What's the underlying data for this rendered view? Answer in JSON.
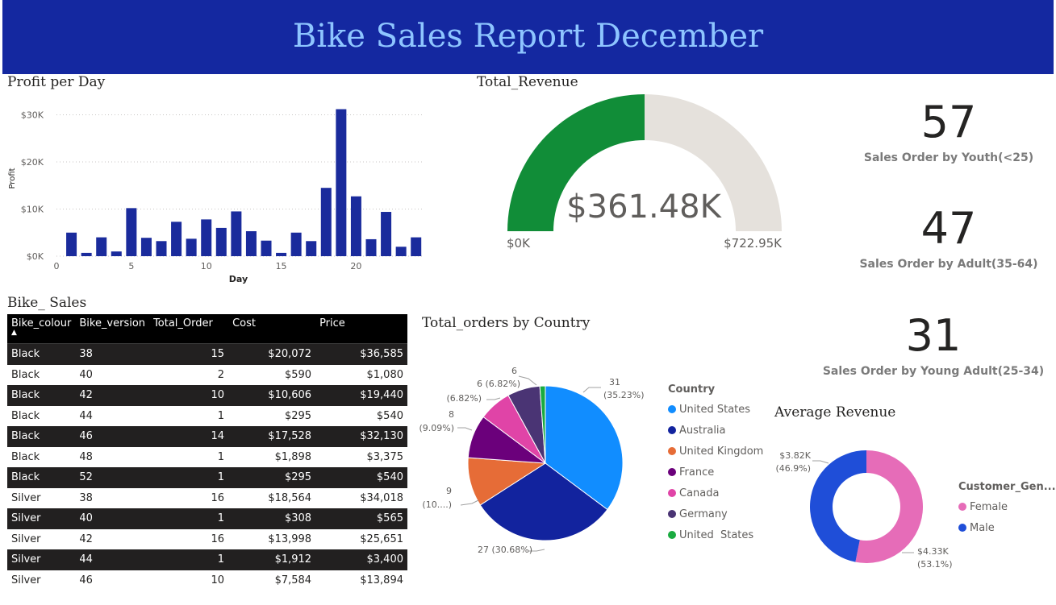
{
  "header": {
    "title": "Bike Sales Report December"
  },
  "profit_per_day": {
    "title": "Profit per Day",
    "chart_data": {
      "type": "bar",
      "xlabel": "Day",
      "ylabel": "Profit",
      "ylim": [
        0,
        33000
      ],
      "xlim": [
        0,
        24.5
      ],
      "y_ticks": [
        0,
        10000,
        20000,
        30000
      ],
      "y_tick_labels": [
        "$0K",
        "$10K",
        "$20K",
        "$30K"
      ],
      "x_ticks": [
        0,
        5,
        10,
        15,
        20
      ],
      "x_tick_labels": [
        "0",
        "5",
        "10",
        "15",
        "20"
      ],
      "days": [
        1,
        2,
        3,
        4,
        5,
        6,
        7,
        8,
        9,
        10,
        11,
        12,
        13,
        14,
        15,
        16,
        17,
        18,
        19,
        20,
        21,
        22,
        23,
        24
      ],
      "values": [
        5000,
        700,
        4000,
        1000,
        10200,
        3900,
        3200,
        7300,
        3700,
        7800,
        6000,
        9500,
        5300,
        3300,
        700,
        5000,
        3200,
        14500,
        31200,
        12700,
        3600,
        9400,
        2000,
        4000
      ],
      "grid": true,
      "color": "#1a2b9c"
    }
  },
  "total_revenue": {
    "title": "Total_Revenue",
    "value_label": "$361.48K",
    "min_label": "$0K",
    "max_label": "$722.95K",
    "chart_data": {
      "type": "gauge",
      "value": 361480,
      "min": 0,
      "max": 722950,
      "fill_color": "#118d38",
      "track_color": "#e5e1dc"
    }
  },
  "kpis": [
    {
      "value": "57",
      "label": "Sales Order by Youth(<25)"
    },
    {
      "value": "47",
      "label": "Sales Order by Adult(35-64)"
    },
    {
      "value": "31",
      "label": "Sales Order by Young Adult(25-34)"
    }
  ],
  "bike_sales": {
    "title": "Bike_ Sales",
    "columns": [
      "Bike_colour",
      "Bike_version",
      "Total_Order",
      "Cost",
      "Price"
    ],
    "sort_indicator": "▲",
    "rows": [
      [
        "Black",
        "38",
        "15",
        "$20,072",
        "$36,585"
      ],
      [
        "Black",
        "40",
        "2",
        "$590",
        "$1,080"
      ],
      [
        "Black",
        "42",
        "10",
        "$10,606",
        "$19,440"
      ],
      [
        "Black",
        "44",
        "1",
        "$295",
        "$540"
      ],
      [
        "Black",
        "46",
        "14",
        "$17,528",
        "$32,130"
      ],
      [
        "Black",
        "48",
        "1",
        "$1,898",
        "$3,375"
      ],
      [
        "Black",
        "52",
        "1",
        "$295",
        "$540"
      ],
      [
        "Silver",
        "38",
        "16",
        "$18,564",
        "$34,018"
      ],
      [
        "Silver",
        "40",
        "1",
        "$308",
        "$565"
      ],
      [
        "Silver",
        "42",
        "16",
        "$13,998",
        "$25,651"
      ],
      [
        "Silver",
        "44",
        "1",
        "$1,912",
        "$3,400"
      ],
      [
        "Silver",
        "46",
        "10",
        "$7,584",
        "$13,894"
      ]
    ]
  },
  "orders_by_country": {
    "title": "Total_orders by Country",
    "legend_title": "Country",
    "chart_data": {
      "type": "pie",
      "series": [
        {
          "name": "United States",
          "value": 31,
          "color": "#118dff"
        },
        {
          "name": "Australia",
          "value": 27,
          "color": "#12239e"
        },
        {
          "name": "United Kingdom",
          "value": 9,
          "color": "#e66c37"
        },
        {
          "name": "France",
          "value": 8,
          "color": "#6b007b"
        },
        {
          "name": "Canada",
          "value": 6,
          "color": "#e044a7"
        },
        {
          "name": "Germany",
          "value": 6,
          "color": "#4a3474"
        },
        {
          "name": "United  States",
          "value": 1,
          "color": "#1aab40"
        }
      ],
      "data_labels": [
        {
          "line1": "31",
          "line2": "(35.23%)"
        },
        {
          "line1": "27 (30.68%)",
          "line2": ""
        },
        {
          "line1": "9",
          "line2": "(10....)"
        },
        {
          "line1": "8",
          "line2": "(9.09%)"
        },
        {
          "line1": "6 (6.82%)",
          "line2": "(6.82%)"
        },
        {
          "line1": "6",
          "line2": ""
        }
      ]
    }
  },
  "average_revenue": {
    "title": "Average Revenue",
    "legend_title": "Customer_Gen...",
    "chart_data": {
      "type": "donut",
      "series": [
        {
          "name": "Female",
          "value": 4330,
          "color": "#e66cb8",
          "label": "$4.33K",
          "pct_label": "(53.1%)"
        },
        {
          "name": "Male",
          "value": 3820,
          "color": "#1f4ed8",
          "label": "$3.82K",
          "pct_label": "(46.9%)"
        }
      ]
    }
  }
}
